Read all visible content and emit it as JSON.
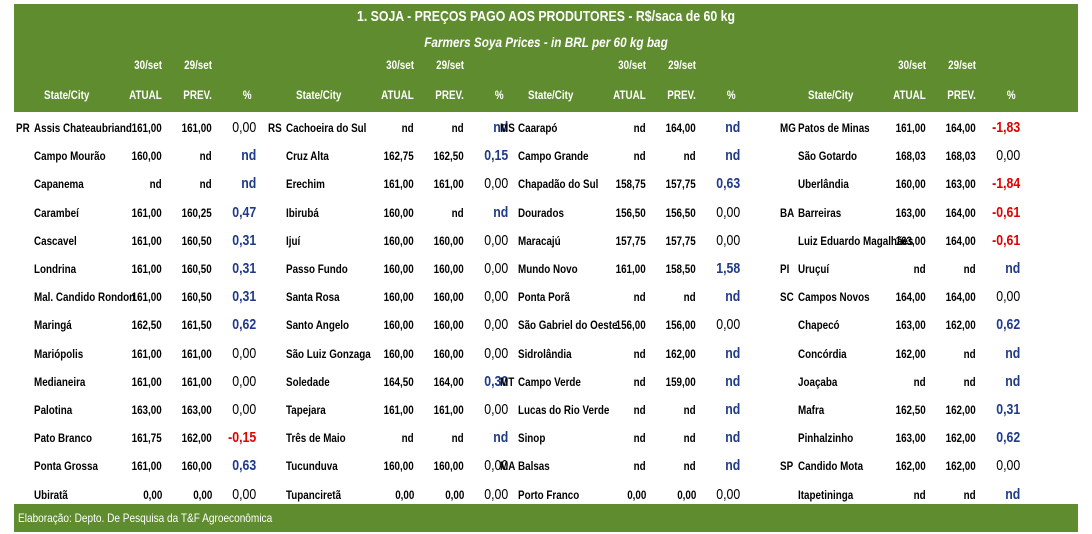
{
  "title": "1. SOJA - PREÇOS PAGO AOS PRODUTORES - R$/saca de 60 kg",
  "subtitle": "Farmers Soya Prices - in BRL per 60 kg bag",
  "footer": "Elaboração: Depto. De Pesquisa da T&F Agroeconômica",
  "colors": {
    "header_bg": "#5e8c2e",
    "positive": "#1f3a8a",
    "negative": "#e00000"
  },
  "column_headers": {
    "state_city": "State/City",
    "date_current": "30/set",
    "date_previous": "29/set",
    "atual": "ATUAL",
    "prev": "PREV.",
    "pct": "%"
  },
  "blocks": [
    {
      "rows": [
        {
          "state": "PR",
          "city": "Assis Chateaubriand",
          "atual": "161,00",
          "prev": "161,00",
          "pct": "0,00",
          "tone": "neutral"
        },
        {
          "state": "",
          "city": "Campo Mourão",
          "atual": "160,00",
          "prev": "nd",
          "pct": "nd",
          "tone": "blue"
        },
        {
          "state": "",
          "city": "Capanema",
          "atual": "nd",
          "prev": "nd",
          "pct": "nd",
          "tone": "blue"
        },
        {
          "state": "",
          "city": "Carambeí",
          "atual": "161,00",
          "prev": "160,25",
          "pct": "0,47",
          "tone": "blue"
        },
        {
          "state": "",
          "city": "Cascavel",
          "atual": "161,00",
          "prev": "160,50",
          "pct": "0,31",
          "tone": "blue"
        },
        {
          "state": "",
          "city": "Londrina",
          "atual": "161,00",
          "prev": "160,50",
          "pct": "0,31",
          "tone": "blue"
        },
        {
          "state": "",
          "city": "Mal. Candido Rondon",
          "atual": "161,00",
          "prev": "160,50",
          "pct": "0,31",
          "tone": "blue"
        },
        {
          "state": "",
          "city": "Maringá",
          "atual": "162,50",
          "prev": "161,50",
          "pct": "0,62",
          "tone": "blue"
        },
        {
          "state": "",
          "city": "Mariópolis",
          "atual": "161,00",
          "prev": "161,00",
          "pct": "0,00",
          "tone": "neutral"
        },
        {
          "state": "",
          "city": "Medianeira",
          "atual": "161,00",
          "prev": "161,00",
          "pct": "0,00",
          "tone": "neutral"
        },
        {
          "state": "",
          "city": "Palotina",
          "atual": "163,00",
          "prev": "163,00",
          "pct": "0,00",
          "tone": "neutral"
        },
        {
          "state": "",
          "city": "Pato Branco",
          "atual": "161,75",
          "prev": "162,00",
          "pct": "-0,15",
          "tone": "red"
        },
        {
          "state": "",
          "city": "Ponta Grossa",
          "atual": "161,00",
          "prev": "160,00",
          "pct": "0,63",
          "tone": "blue"
        },
        {
          "state": "",
          "city": "Ubiratã",
          "atual": "0,00",
          "prev": "0,00",
          "pct": "0,00",
          "tone": "neutral"
        }
      ]
    },
    {
      "rows": [
        {
          "state": "RS",
          "city": "Cachoeira do Sul",
          "atual": "nd",
          "prev": "nd",
          "pct": "nd",
          "tone": "blue"
        },
        {
          "state": "",
          "city": "Cruz Alta",
          "atual": "162,75",
          "prev": "162,50",
          "pct": "0,15",
          "tone": "blue"
        },
        {
          "state": "",
          "city": "Erechim",
          "atual": "161,00",
          "prev": "161,00",
          "pct": "0,00",
          "tone": "neutral"
        },
        {
          "state": "",
          "city": "Ibirubá",
          "atual": "160,00",
          "prev": "nd",
          "pct": "nd",
          "tone": "blue"
        },
        {
          "state": "",
          "city": "Ijuí",
          "atual": "160,00",
          "prev": "160,00",
          "pct": "0,00",
          "tone": "neutral"
        },
        {
          "state": "",
          "city": "Passo Fundo",
          "atual": "160,00",
          "prev": "160,00",
          "pct": "0,00",
          "tone": "neutral"
        },
        {
          "state": "",
          "city": "Santa Rosa",
          "atual": "160,00",
          "prev": "160,00",
          "pct": "0,00",
          "tone": "neutral"
        },
        {
          "state": "",
          "city": "Santo Angelo",
          "atual": "160,00",
          "prev": "160,00",
          "pct": "0,00",
          "tone": "neutral"
        },
        {
          "state": "",
          "city": "São Luiz Gonzaga",
          "atual": "160,00",
          "prev": "160,00",
          "pct": "0,00",
          "tone": "neutral"
        },
        {
          "state": "",
          "city": "Soledade",
          "atual": "164,50",
          "prev": "164,00",
          "pct": "0,30",
          "tone": "blue"
        },
        {
          "state": "",
          "city": "Tapejara",
          "atual": "161,00",
          "prev": "161,00",
          "pct": "0,00",
          "tone": "neutral"
        },
        {
          "state": "",
          "city": "Três de Maio",
          "atual": "nd",
          "prev": "nd",
          "pct": "nd",
          "tone": "blue"
        },
        {
          "state": "",
          "city": "Tucunduva",
          "atual": "160,00",
          "prev": "160,00",
          "pct": "0,00",
          "tone": "neutral"
        },
        {
          "state": "",
          "city": "Tupanciretã",
          "atual": "0,00",
          "prev": "0,00",
          "pct": "0,00",
          "tone": "neutral"
        }
      ]
    },
    {
      "rows": [
        {
          "state": "MS",
          "city": "Caarapó",
          "atual": "nd",
          "prev": "164,00",
          "pct": "nd",
          "tone": "blue"
        },
        {
          "state": "",
          "city": "Campo Grande",
          "atual": "nd",
          "prev": "nd",
          "pct": "nd",
          "tone": "blue"
        },
        {
          "state": "",
          "city": "Chapadão do Sul",
          "atual": "158,75",
          "prev": "157,75",
          "pct": "0,63",
          "tone": "blue"
        },
        {
          "state": "",
          "city": "Dourados",
          "atual": "156,50",
          "prev": "156,50",
          "pct": "0,00",
          "tone": "neutral"
        },
        {
          "state": "",
          "city": "Maracajú",
          "atual": "157,75",
          "prev": "157,75",
          "pct": "0,00",
          "tone": "neutral"
        },
        {
          "state": "",
          "city": "Mundo Novo",
          "atual": "161,00",
          "prev": "158,50",
          "pct": "1,58",
          "tone": "blue"
        },
        {
          "state": "",
          "city": "Ponta Porã",
          "atual": "nd",
          "prev": "nd",
          "pct": "nd",
          "tone": "blue"
        },
        {
          "state": "",
          "city": "São Gabriel do Oeste",
          "atual": "156,00",
          "prev": "156,00",
          "pct": "0,00",
          "tone": "neutral"
        },
        {
          "state": "",
          "city": "Sidrolândia",
          "atual": "nd",
          "prev": "162,00",
          "pct": "nd",
          "tone": "blue"
        },
        {
          "state": "MT",
          "city": "Campo Verde",
          "atual": "nd",
          "prev": "159,00",
          "pct": "nd",
          "tone": "blue"
        },
        {
          "state": "",
          "city": "Lucas do Rio Verde",
          "atual": "nd",
          "prev": "nd",
          "pct": "nd",
          "tone": "blue"
        },
        {
          "state": "",
          "city": "Sinop",
          "atual": "nd",
          "prev": "nd",
          "pct": "nd",
          "tone": "blue"
        },
        {
          "state": "MA",
          "city": "Balsas",
          "atual": "nd",
          "prev": "nd",
          "pct": "nd",
          "tone": "blue"
        },
        {
          "state": "",
          "city": "Porto Franco",
          "atual": "0,00",
          "prev": "0,00",
          "pct": "0,00",
          "tone": "neutral"
        }
      ]
    },
    {
      "rows": [
        {
          "state": "MG",
          "city": "Patos de Minas",
          "atual": "161,00",
          "prev": "164,00",
          "pct": "-1,83",
          "tone": "red"
        },
        {
          "state": "",
          "city": "São Gotardo",
          "atual": "168,03",
          "prev": "168,03",
          "pct": "0,00",
          "tone": "neutral"
        },
        {
          "state": "",
          "city": "Uberlândia",
          "atual": "160,00",
          "prev": "163,00",
          "pct": "-1,84",
          "tone": "red"
        },
        {
          "state": "BA",
          "city": "Barreiras",
          "atual": "163,00",
          "prev": "164,00",
          "pct": "-0,61",
          "tone": "red"
        },
        {
          "state": "",
          "city": "Luiz Eduardo Magalhães",
          "atual": "163,00",
          "prev": "164,00",
          "pct": "-0,61",
          "tone": "red"
        },
        {
          "state": "PI",
          "city": "Uruçuí",
          "atual": "nd",
          "prev": "nd",
          "pct": "nd",
          "tone": "blue"
        },
        {
          "state": "SC",
          "city": "Campos Novos",
          "atual": "164,00",
          "prev": "164,00",
          "pct": "0,00",
          "tone": "neutral"
        },
        {
          "state": "",
          "city": "Chapecó",
          "atual": "163,00",
          "prev": "162,00",
          "pct": "0,62",
          "tone": "blue"
        },
        {
          "state": "",
          "city": "Concórdia",
          "atual": "162,00",
          "prev": "nd",
          "pct": "nd",
          "tone": "blue"
        },
        {
          "state": "",
          "city": "Joaçaba",
          "atual": "nd",
          "prev": "nd",
          "pct": "nd",
          "tone": "blue"
        },
        {
          "state": "",
          "city": "Mafra",
          "atual": "162,50",
          "prev": "162,00",
          "pct": "0,31",
          "tone": "blue"
        },
        {
          "state": "",
          "city": "Pinhalzinho",
          "atual": "163,00",
          "prev": "162,00",
          "pct": "0,62",
          "tone": "blue"
        },
        {
          "state": "SP",
          "city": "Candido Mota",
          "atual": "162,00",
          "prev": "162,00",
          "pct": "0,00",
          "tone": "neutral"
        },
        {
          "state": "",
          "city": "Itapetininga",
          "atual": "nd",
          "prev": "nd",
          "pct": "nd",
          "tone": "blue"
        }
      ]
    }
  ]
}
